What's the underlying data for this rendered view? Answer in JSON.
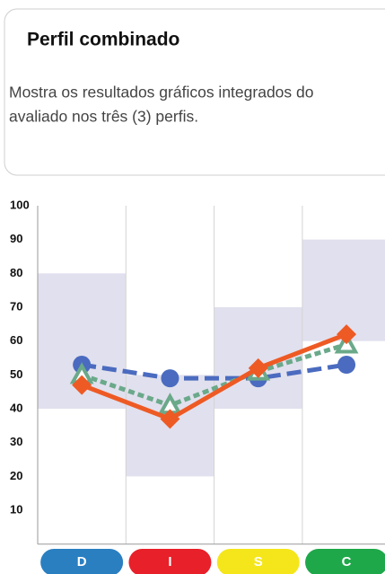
{
  "header": {
    "title": "Perfil combinado",
    "description": [
      "Mostra os resultados gráficos integrados do",
      "avaliado nos três (3) perfis."
    ]
  },
  "chart_data": {
    "type": "line",
    "categories": [
      "D",
      "I",
      "S",
      "C"
    ],
    "category_colors": [
      "#2a7fc1",
      "#e8202a",
      "#f5e61b",
      "#1ea84a"
    ],
    "ranges": [
      [
        40,
        80
      ],
      [
        20,
        50
      ],
      [
        40,
        70
      ],
      [
        60,
        90
      ]
    ],
    "range_color": "#e1e0ee",
    "series": [
      {
        "color": "#4a6bbf",
        "marker": "circle",
        "dash": "16 7",
        "values": [
          53,
          49,
          49,
          53
        ]
      },
      {
        "color": "#6aa98a",
        "marker": "triangle",
        "dash": "7 4",
        "values": [
          50,
          41,
          51,
          59
        ]
      },
      {
        "color": "#ee5a24",
        "marker": "diamond",
        "dash": "",
        "values": [
          47,
          37,
          52,
          62
        ]
      }
    ],
    "ylim": [
      0,
      100
    ],
    "yticks": [
      10,
      20,
      30,
      40,
      50,
      60,
      70,
      80,
      90,
      100
    ],
    "grid": false
  }
}
